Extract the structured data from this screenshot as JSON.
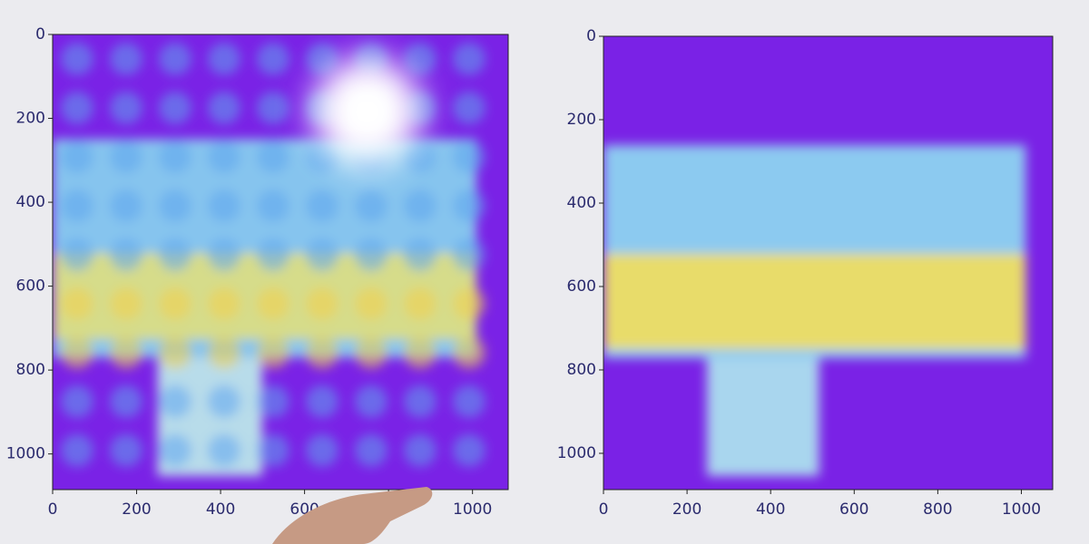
{
  "chart_data": [
    {
      "type": "image",
      "xlim": [
        0,
        1085
      ],
      "ylim": [
        1085,
        0
      ],
      "xticks": [
        0,
        200,
        400,
        600,
        800,
        1000
      ],
      "yticks": [
        0,
        200,
        400,
        600,
        800,
        1000
      ]
    },
    {
      "type": "image",
      "xlim": [
        0,
        1075
      ],
      "ylim": [
        1087,
        0
      ],
      "xticks": [
        0,
        200,
        400,
        600,
        800,
        1000
      ],
      "yticks": [
        0,
        200,
        400,
        600,
        800,
        1000
      ]
    }
  ]
}
